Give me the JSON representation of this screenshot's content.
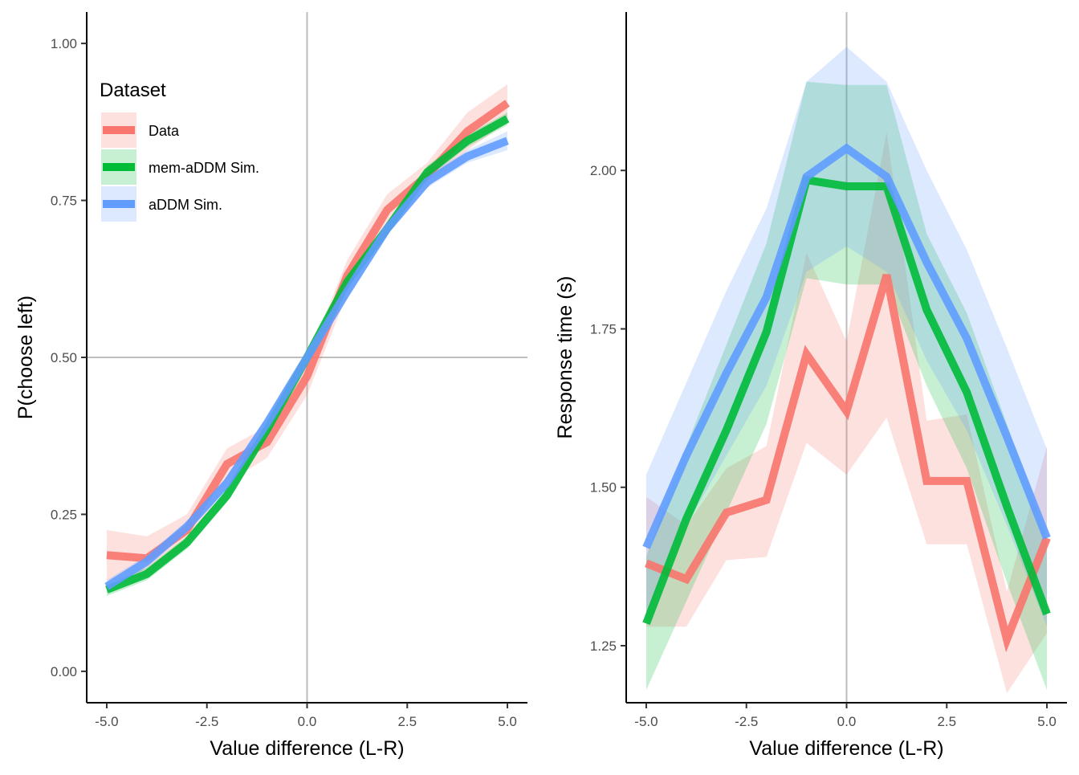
{
  "chart_data": [
    {
      "type": "line",
      "panel": "left",
      "xlabel": "Value difference (L-R)",
      "ylabel": "P(choose left)",
      "xlim": [
        -5.5,
        5.5
      ],
      "ylim": [
        -0.05,
        1.05
      ],
      "x_ticks": [
        -5,
        -2.5,
        0,
        2.5,
        5
      ],
      "x_tick_labels": [
        "-5.0",
        "-2.5",
        "0.0",
        "2.5",
        "5.0"
      ],
      "y_ticks": [
        0,
        0.25,
        0.5,
        0.75,
        1.0
      ],
      "y_tick_labels": [
        "0.00",
        "0.25",
        "0.50",
        "0.75",
        "1.00"
      ],
      "reference_lines": {
        "vertical_x": 0,
        "horizontal_y": 0.5
      },
      "grid": false,
      "x": [
        -5,
        -4,
        -3,
        -2,
        -1,
        0,
        1,
        2,
        3,
        4,
        5
      ],
      "series": [
        {
          "name": "Data",
          "color": "#F8766D",
          "values": [
            0.185,
            0.18,
            0.225,
            0.33,
            0.365,
            0.47,
            0.63,
            0.735,
            0.79,
            0.86,
            0.905
          ],
          "lower": [
            0.145,
            0.15,
            0.2,
            0.3,
            0.34,
            0.44,
            0.6,
            0.71,
            0.77,
            0.83,
            0.875
          ],
          "upper": [
            0.225,
            0.215,
            0.25,
            0.355,
            0.39,
            0.495,
            0.655,
            0.76,
            0.81,
            0.89,
            0.935
          ]
        },
        {
          "name": "mem-aDDM Sim.",
          "color": "#00BA38",
          "values": [
            0.13,
            0.155,
            0.205,
            0.28,
            0.385,
            0.5,
            0.62,
            0.705,
            0.795,
            0.845,
            0.88
          ],
          "lower": [
            0.12,
            0.145,
            0.195,
            0.27,
            0.375,
            0.49,
            0.61,
            0.695,
            0.785,
            0.835,
            0.87
          ],
          "upper": [
            0.14,
            0.165,
            0.215,
            0.29,
            0.395,
            0.51,
            0.63,
            0.715,
            0.805,
            0.855,
            0.89
          ]
        },
        {
          "name": "aDDM Sim.",
          "color": "#619CFF",
          "values": [
            0.135,
            0.175,
            0.23,
            0.3,
            0.395,
            0.5,
            0.605,
            0.705,
            0.78,
            0.82,
            0.845
          ],
          "lower": [
            0.125,
            0.165,
            0.22,
            0.29,
            0.385,
            0.49,
            0.595,
            0.695,
            0.77,
            0.81,
            0.83
          ],
          "upper": [
            0.145,
            0.185,
            0.24,
            0.31,
            0.405,
            0.51,
            0.615,
            0.715,
            0.79,
            0.83,
            0.86
          ]
        }
      ]
    },
    {
      "type": "line",
      "panel": "right",
      "xlabel": "Value difference (L-R)",
      "ylabel": "Response time (s)",
      "xlim": [
        -5.5,
        5.5
      ],
      "ylim": [
        1.16,
        2.25
      ],
      "x_ticks": [
        -5,
        -2.5,
        0,
        2.5,
        5
      ],
      "x_tick_labels": [
        "-5.0",
        "-2.5",
        "0.0",
        "2.5",
        "5.0"
      ],
      "y_ticks": [
        1.25,
        1.5,
        1.75,
        2.0
      ],
      "y_tick_labels": [
        "1.25",
        "1.50",
        "1.75",
        "2.00"
      ],
      "reference_lines": {
        "vertical_x": 0
      },
      "grid": false,
      "x": [
        -5,
        -4,
        -3,
        -2,
        -1,
        0,
        1,
        2,
        3,
        4,
        5
      ],
      "series": [
        {
          "name": "Data",
          "color": "#F8766D",
          "values": [
            1.38,
            1.355,
            1.46,
            1.48,
            1.71,
            1.62,
            1.835,
            1.51,
            1.51,
            1.26,
            1.42
          ],
          "lower": [
            1.28,
            1.28,
            1.385,
            1.39,
            1.57,
            1.52,
            1.61,
            1.41,
            1.41,
            1.175,
            1.27
          ],
          "upper": [
            1.485,
            1.44,
            1.53,
            1.565,
            1.87,
            1.73,
            2.06,
            1.605,
            1.615,
            1.335,
            1.565
          ]
        },
        {
          "name": "mem-aDDM Sim.",
          "color": "#00BA38",
          "values": [
            1.285,
            1.45,
            1.59,
            1.745,
            1.985,
            1.975,
            1.975,
            1.78,
            1.65,
            1.47,
            1.3
          ],
          "lower": [
            1.18,
            1.32,
            1.46,
            1.6,
            1.83,
            1.82,
            1.82,
            1.66,
            1.53,
            1.35,
            1.18
          ],
          "upper": [
            1.39,
            1.565,
            1.725,
            1.885,
            2.14,
            2.135,
            2.135,
            1.9,
            1.775,
            1.6,
            1.42
          ]
        },
        {
          "name": "aDDM Sim.",
          "color": "#619CFF",
          "values": [
            1.405,
            1.55,
            1.68,
            1.8,
            1.99,
            2.035,
            1.99,
            1.855,
            1.735,
            1.58,
            1.42
          ],
          "lower": [
            1.3,
            1.44,
            1.55,
            1.66,
            1.84,
            1.88,
            1.84,
            1.7,
            1.59,
            1.44,
            1.28
          ],
          "upper": [
            1.52,
            1.665,
            1.81,
            1.94,
            2.14,
            2.195,
            2.14,
            2.0,
            1.875,
            1.72,
            1.56
          ]
        }
      ]
    }
  ],
  "legend": {
    "title": "Dataset",
    "placement": "top-left of left panel",
    "entries": [
      "Data",
      "mem-aDDM Sim.",
      "aDDM Sim."
    ]
  }
}
